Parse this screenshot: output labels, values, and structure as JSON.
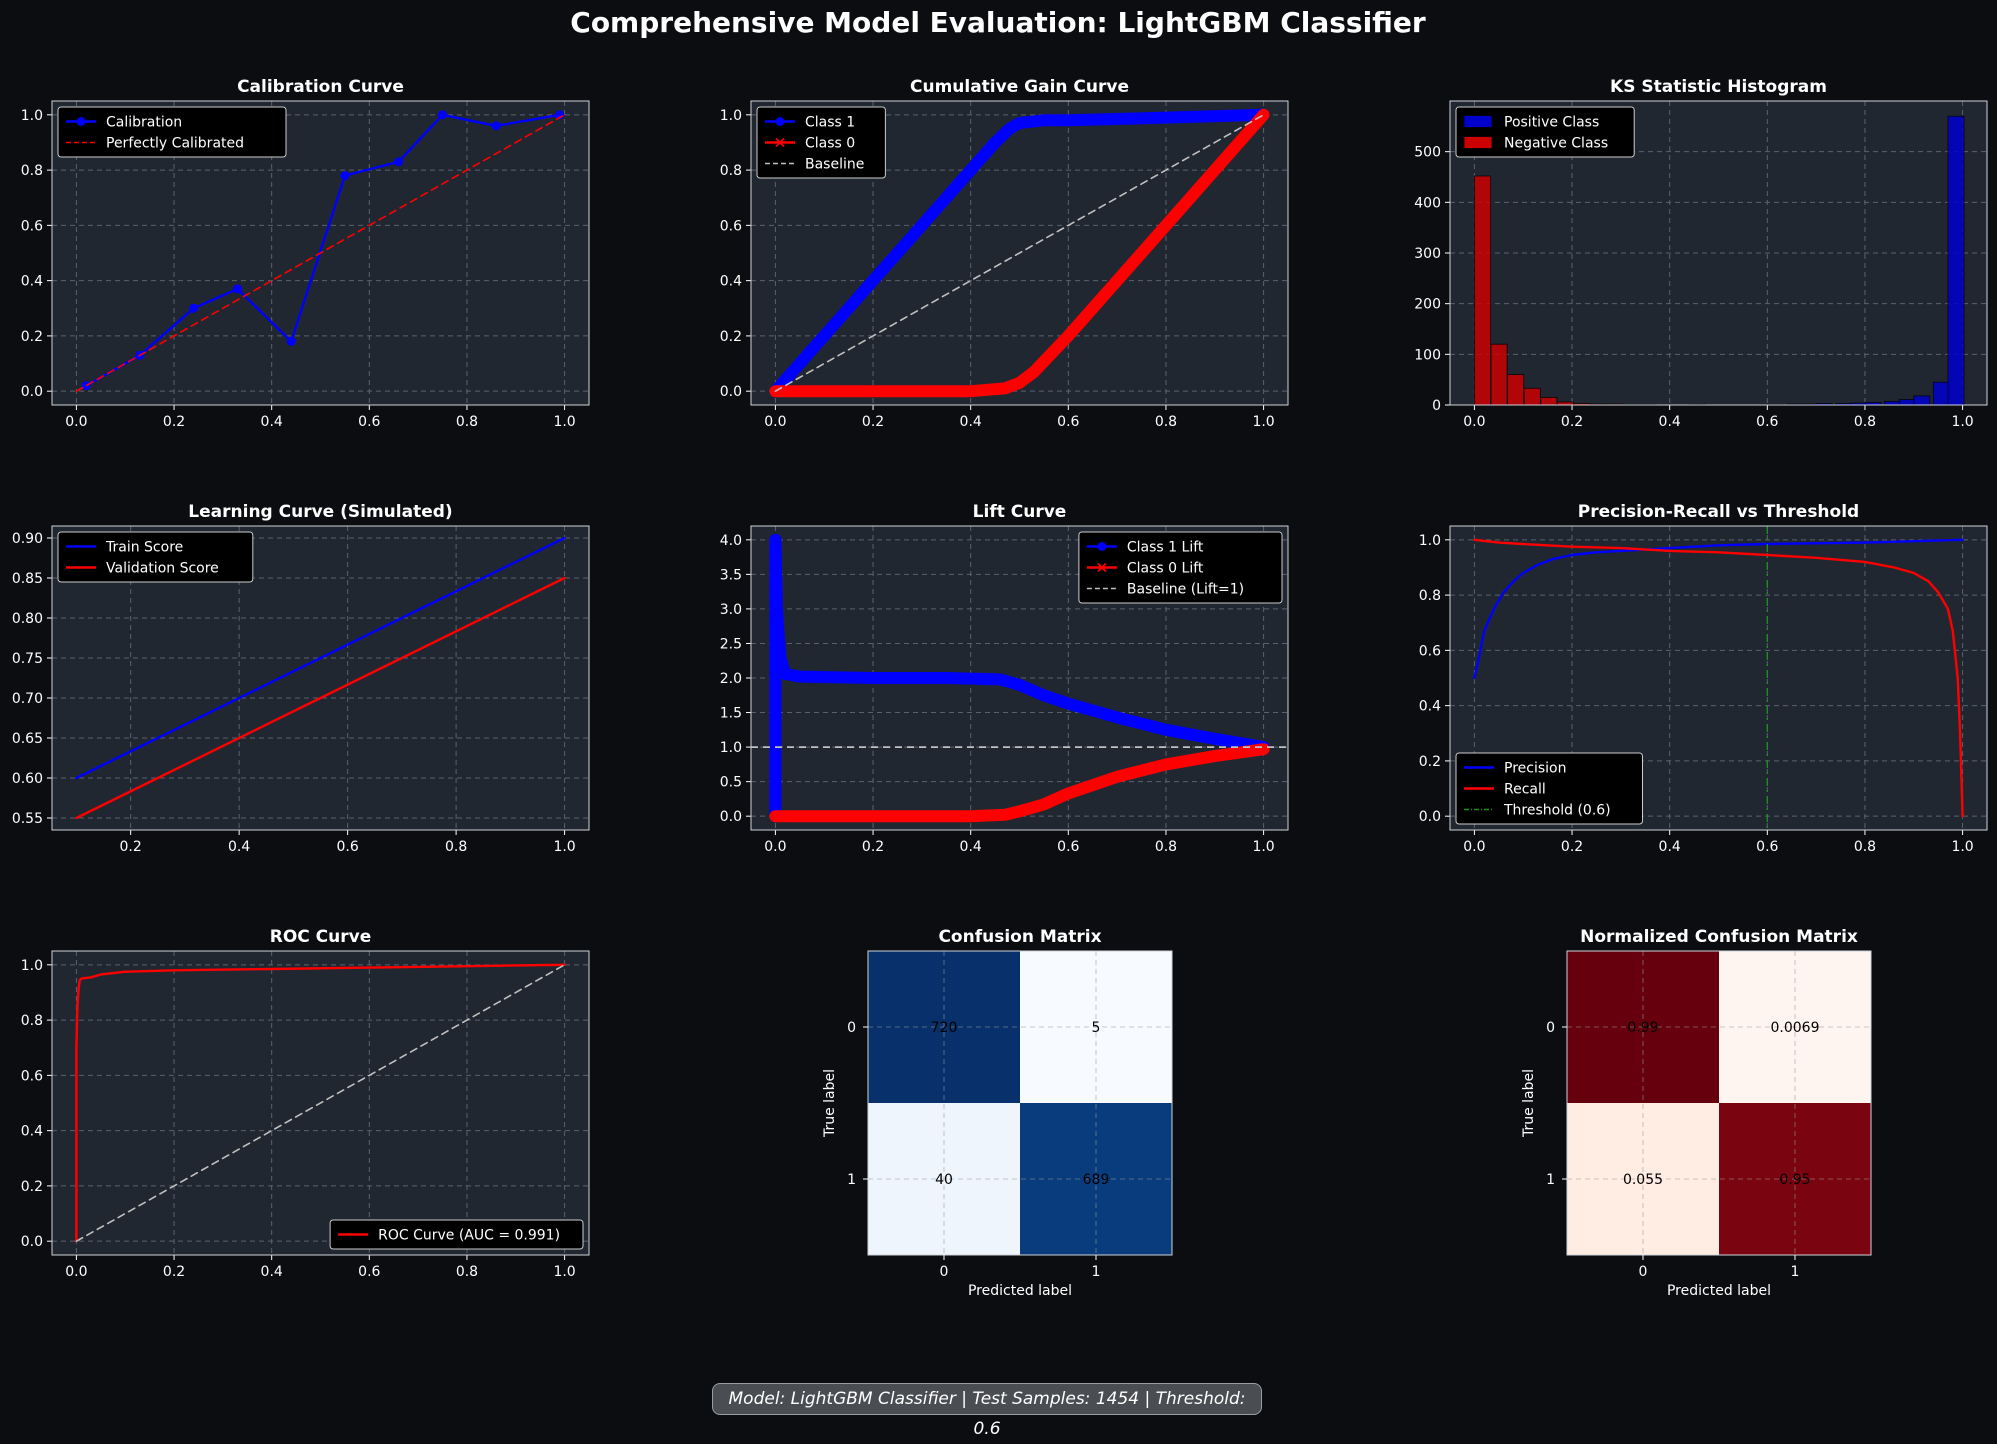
{
  "figure": {
    "title": "Comprehensive Model Evaluation: LightGBM Classifier",
    "footer": "Model: LightGBM Classifier | Test Samples: 1454 | Threshold: 0.6"
  },
  "colors": {
    "figure_bg": "#0b0d10",
    "panel_bg": "#202731",
    "grid": "#5a6270",
    "blue": "#0000ff",
    "red": "#ff0000",
    "baseline": "#c0c0c0",
    "threshold": "#1f8f1f"
  },
  "chart_data": [
    {
      "id": "calibration",
      "type": "line",
      "title": "Calibration Curve",
      "xlim": [
        -0.05,
        1.05
      ],
      "ylim": [
        -0.05,
        1.05
      ],
      "xticks": [
        0.0,
        0.2,
        0.4,
        0.6,
        0.8,
        1.0
      ],
      "yticks": [
        0.0,
        0.2,
        0.4,
        0.6,
        0.8,
        1.0
      ],
      "grid": true,
      "legend": "upper-left",
      "series": [
        {
          "name": "Calibration",
          "color": "#0000ff",
          "marker": "circle",
          "x": [
            0.02,
            0.13,
            0.24,
            0.33,
            0.44,
            0.55,
            0.66,
            0.75,
            0.86,
            0.99
          ],
          "y": [
            0.02,
            0.13,
            0.3,
            0.37,
            0.18,
            0.78,
            0.83,
            1.0,
            0.96,
            1.0
          ]
        },
        {
          "name": "Perfectly Calibrated",
          "color": "#ff0000",
          "dash": "dashed",
          "x": [
            0,
            1
          ],
          "y": [
            0,
            1
          ]
        }
      ]
    },
    {
      "id": "gain",
      "type": "line",
      "title": "Cumulative Gain Curve",
      "xlim": [
        -0.05,
        1.05
      ],
      "ylim": [
        -0.05,
        1.05
      ],
      "xticks": [
        0.0,
        0.2,
        0.4,
        0.6,
        0.8,
        1.0
      ],
      "yticks": [
        0.0,
        0.2,
        0.4,
        0.6,
        0.8,
        1.0
      ],
      "grid": true,
      "legend": "upper-left",
      "series": [
        {
          "name": "Class 1",
          "color": "#0000ff",
          "marker": "circle",
          "thick": true,
          "x": [
            0.0,
            0.1,
            0.2,
            0.3,
            0.4,
            0.45,
            0.48,
            0.5,
            0.55,
            0.6,
            0.8,
            1.0
          ],
          "y": [
            0.0,
            0.2,
            0.4,
            0.6,
            0.8,
            0.9,
            0.95,
            0.97,
            0.98,
            0.98,
            0.99,
            1.0
          ]
        },
        {
          "name": "Class 0",
          "color": "#ff0000",
          "marker": "x",
          "thick": true,
          "x": [
            0.0,
            0.2,
            0.4,
            0.47,
            0.5,
            0.53,
            0.6,
            0.8,
            1.0
          ],
          "y": [
            0.0,
            0.0,
            0.0,
            0.01,
            0.03,
            0.07,
            0.2,
            0.6,
            1.0
          ]
        },
        {
          "name": "Baseline",
          "color": "#c0c0c0",
          "dash": "dashed",
          "x": [
            0,
            1
          ],
          "y": [
            0,
            1
          ]
        }
      ]
    },
    {
      "id": "ks",
      "type": "bar",
      "title": "KS Statistic Histogram",
      "xlim": [
        -0.05,
        1.05
      ],
      "ylim": [
        0,
        600
      ],
      "xticks": [
        0.0,
        0.2,
        0.4,
        0.6,
        0.8,
        1.0
      ],
      "yticks": [
        0,
        100,
        200,
        300,
        400,
        500
      ],
      "grid": true,
      "legend": "upper-left",
      "bin_width": 0.033,
      "series": [
        {
          "name": "Positive Class",
          "color": "#0000cc",
          "x": [
            0.6,
            0.64,
            0.67,
            0.7,
            0.74,
            0.77,
            0.8,
            0.84,
            0.87,
            0.9,
            0.94,
            0.97
          ],
          "y": [
            1,
            2,
            2,
            3,
            3,
            4,
            5,
            7,
            11,
            18,
            45,
            570
          ]
        },
        {
          "name": "Negative Class",
          "color": "#cc0000",
          "x": [
            0.0,
            0.034,
            0.068,
            0.102,
            0.136,
            0.17,
            0.204,
            0.238,
            0.272,
            0.306,
            0.34,
            0.44
          ],
          "y": [
            452,
            120,
            60,
            33,
            15,
            6,
            3,
            2,
            2,
            1,
            1,
            1
          ]
        }
      ]
    },
    {
      "id": "learning",
      "type": "line",
      "title": "Learning Curve (Simulated)",
      "xlim": [
        0.055,
        1.045
      ],
      "ylim": [
        0.535,
        0.915
      ],
      "xticks": [
        0.2,
        0.4,
        0.6,
        0.8,
        1.0
      ],
      "yticks": [
        0.55,
        0.6,
        0.65,
        0.7,
        0.75,
        0.8,
        0.85,
        0.9
      ],
      "grid": true,
      "legend": "upper-left",
      "series": [
        {
          "name": "Train Score",
          "color": "#0000ff",
          "x": [
            0.1,
            1.0
          ],
          "y": [
            0.6,
            0.9
          ]
        },
        {
          "name": "Validation Score",
          "color": "#ff0000",
          "x": [
            0.1,
            1.0
          ],
          "y": [
            0.55,
            0.85
          ]
        }
      ]
    },
    {
      "id": "lift",
      "type": "line",
      "title": "Lift Curve",
      "xlim": [
        -0.05,
        1.05
      ],
      "ylim": [
        -0.2,
        4.2
      ],
      "xticks": [
        0.0,
        0.2,
        0.4,
        0.6,
        0.8,
        1.0
      ],
      "yticks": [
        0.0,
        0.5,
        1.0,
        1.5,
        2.0,
        2.5,
        3.0,
        3.5,
        4.0
      ],
      "grid": true,
      "legend": "upper-right",
      "series": [
        {
          "name": "Class 1 Lift",
          "color": "#0000ff",
          "marker": "circle",
          "thick": true,
          "x": [
            0.0,
            0.0,
            0.003,
            0.006,
            0.01,
            0.02,
            0.05,
            0.2,
            0.35,
            0.46,
            0.5,
            0.55,
            0.6,
            0.7,
            0.8,
            0.9,
            1.0
          ],
          "y": [
            0.0,
            4.0,
            3.0,
            2.7,
            2.3,
            2.06,
            2.02,
            2.0,
            2.0,
            1.98,
            1.9,
            1.75,
            1.63,
            1.43,
            1.25,
            1.12,
            1.0
          ]
        },
        {
          "name": "Class 0 Lift",
          "color": "#ff0000",
          "marker": "x",
          "thick": true,
          "x": [
            0.0,
            0.2,
            0.4,
            0.47,
            0.5,
            0.55,
            0.6,
            0.7,
            0.8,
            0.9,
            1.0
          ],
          "y": [
            0.0,
            0.0,
            0.0,
            0.02,
            0.07,
            0.17,
            0.33,
            0.57,
            0.75,
            0.87,
            0.97
          ]
        },
        {
          "name": "Baseline (Lift=1)",
          "color": "#c0c0c0",
          "dash": "dashed",
          "hline": 1.0
        }
      ]
    },
    {
      "id": "pr",
      "type": "line",
      "title": "Precision-Recall vs Threshold",
      "xlim": [
        -0.05,
        1.05
      ],
      "ylim": [
        -0.05,
        1.05
      ],
      "xticks": [
        0.0,
        0.2,
        0.4,
        0.6,
        0.8,
        1.0
      ],
      "yticks": [
        0.0,
        0.2,
        0.4,
        0.6,
        0.8,
        1.0
      ],
      "grid": true,
      "legend": "lower-left",
      "series": [
        {
          "name": "Precision",
          "color": "#0000ff",
          "x": [
            0.0,
            0.01,
            0.02,
            0.04,
            0.06,
            0.08,
            0.1,
            0.13,
            0.16,
            0.2,
            0.25,
            0.3,
            0.4,
            0.5,
            0.6,
            0.8,
            1.0
          ],
          "y": [
            0.5,
            0.58,
            0.67,
            0.75,
            0.81,
            0.85,
            0.88,
            0.91,
            0.93,
            0.945,
            0.955,
            0.96,
            0.97,
            0.98,
            0.985,
            0.99,
            1.0
          ]
        },
        {
          "name": "Recall",
          "color": "#ff0000",
          "x": [
            0.0,
            0.05,
            0.1,
            0.2,
            0.3,
            0.4,
            0.5,
            0.6,
            0.7,
            0.8,
            0.86,
            0.9,
            0.93,
            0.95,
            0.97,
            0.98,
            0.99,
            0.995,
            1.0
          ],
          "y": [
            1.0,
            0.99,
            0.985,
            0.975,
            0.97,
            0.96,
            0.955,
            0.945,
            0.935,
            0.92,
            0.9,
            0.88,
            0.85,
            0.81,
            0.75,
            0.67,
            0.5,
            0.3,
            0.0
          ]
        },
        {
          "name": "Threshold (0.6)",
          "color": "#1f8f1f",
          "dash": "dashdot",
          "vline": 0.6
        }
      ]
    },
    {
      "id": "roc",
      "type": "line",
      "title": "ROC Curve",
      "xlim": [
        -0.05,
        1.05
      ],
      "ylim": [
        -0.05,
        1.05
      ],
      "xticks": [
        0.0,
        0.2,
        0.4,
        0.6,
        0.8,
        1.0
      ],
      "yticks": [
        0.0,
        0.2,
        0.4,
        0.6,
        0.8,
        1.0
      ],
      "grid": true,
      "legend": "lower-right",
      "series": [
        {
          "name": "ROC Curve (AUC = 0.991)",
          "color": "#ff0000",
          "x": [
            0.0,
            0.0,
            0.002,
            0.005,
            0.007,
            0.01,
            0.03,
            0.05,
            0.1,
            0.2,
            0.4,
            0.6,
            0.8,
            1.0
          ],
          "y": [
            0.0,
            0.7,
            0.85,
            0.92,
            0.945,
            0.95,
            0.955,
            0.965,
            0.975,
            0.98,
            0.985,
            0.99,
            0.995,
            1.0
          ]
        },
        {
          "color": "#c0c0c0",
          "dash": "dashed",
          "x": [
            0,
            1
          ],
          "y": [
            0,
            1
          ]
        }
      ]
    },
    {
      "id": "cm",
      "type": "heatmap",
      "title": "Confusion Matrix",
      "xlabel": "Predicted label",
      "ylabel": "True label",
      "xticks": [
        "0",
        "1"
      ],
      "yticks": [
        "0",
        "1"
      ],
      "values": [
        [
          720,
          5
        ],
        [
          40,
          689
        ]
      ],
      "labels": [
        [
          "720",
          "5"
        ],
        [
          "40",
          "689"
        ]
      ],
      "cell_colors": [
        [
          "#08306b",
          "#f7fbff"
        ],
        [
          "#eef5fd",
          "#083c7d"
        ]
      ]
    },
    {
      "id": "cmn",
      "type": "heatmap",
      "title": "Normalized Confusion Matrix",
      "xlabel": "Predicted label",
      "ylabel": "True label",
      "xticks": [
        "0",
        "1"
      ],
      "yticks": [
        "0",
        "1"
      ],
      "values": [
        [
          0.99,
          0.0069
        ],
        [
          0.055,
          0.95
        ]
      ],
      "labels": [
        [
          "0.99",
          "0.0069"
        ],
        [
          "0.055",
          "0.95"
        ]
      ],
      "cell_colors": [
        [
          "#67000d",
          "#fff5f0"
        ],
        [
          "#ffece3",
          "#7a0510"
        ]
      ]
    }
  ]
}
